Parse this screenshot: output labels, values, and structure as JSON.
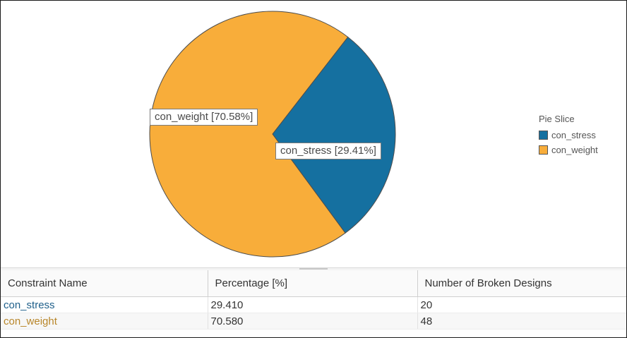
{
  "chart_data": {
    "type": "pie",
    "legend_title": "Pie Slice",
    "legend_position": "right",
    "slices": [
      {
        "name": "con_stress",
        "value": 29.41,
        "label": "con_stress [29.41%]",
        "color": "#1570a0"
      },
      {
        "name": "con_weight",
        "value": 70.58,
        "label": "con_weight [70.58%]",
        "color": "#f8ad3a"
      }
    ]
  },
  "table": {
    "headers": [
      "Constraint Name",
      "Percentage [%]",
      "Number of Broken Designs"
    ],
    "rows": [
      {
        "name": "con_stress",
        "name_color": "#1e5f8a",
        "percentage": "29.410",
        "broken": "20"
      },
      {
        "name": "con_weight",
        "name_color": "#b8862a",
        "percentage": "70.580",
        "broken": "48"
      }
    ]
  }
}
